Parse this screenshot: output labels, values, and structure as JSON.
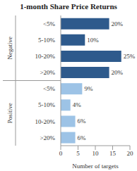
{
  "chart_data": {
    "type": "bar",
    "orientation": "horizontal",
    "title": "1-month Share Price Returns",
    "categories": [
      "<5%",
      "5-10%",
      "10-20%",
      ">20%",
      "<5%",
      "5-10%",
      "10-20%",
      ">20%"
    ],
    "groups": [
      "Negative",
      "Negative",
      "Negative",
      "Negative",
      "Positive",
      "Positive",
      "Positive",
      "Positive"
    ],
    "values": [
      14,
      7,
      17.5,
      14,
      6.2,
      2.8,
      4.2,
      4.2
    ],
    "share_labels": [
      "20%",
      "10%",
      "25%",
      "20%",
      "9%",
      "4%",
      "6%",
      "6%"
    ],
    "colors": [
      "#2e5a8c",
      "#2e5a8c",
      "#2e5a8c",
      "#2e5a8c",
      "#9dc3e6",
      "#9dc3e6",
      "#9dc3e6",
      "#9dc3e6"
    ],
    "xlabel": "Number of targets",
    "xlim": [
      0,
      20
    ],
    "xticks": [
      0,
      5,
      10,
      15,
      20
    ]
  }
}
